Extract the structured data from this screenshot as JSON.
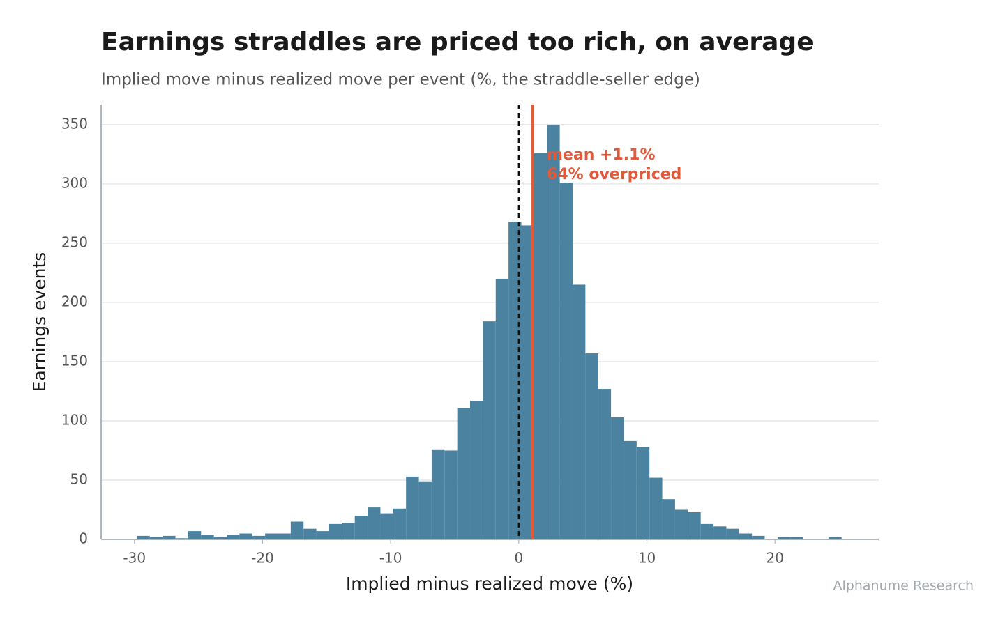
{
  "chart_data": {
    "type": "histogram",
    "title": "Earnings straddles are priced too rich, on average",
    "subtitle": "Implied move minus realized move per event (%, the straddle-seller edge)",
    "x_label": "Implied minus realized move (%)",
    "y_label": "Earnings events",
    "source": "Alphanume Research",
    "bins": [
      -29.8,
      -28.8,
      -27.8,
      -26.8,
      -25.8,
      -24.8,
      -23.8,
      -22.8,
      -21.8,
      -20.8,
      -19.8,
      -18.8,
      -17.8,
      -16.8,
      -15.8,
      -14.8,
      -13.8,
      -12.8,
      -11.8,
      -10.8,
      -9.8,
      -8.8,
      -7.8,
      -6.8,
      -5.8,
      -4.8,
      -3.8,
      -2.8,
      -1.8,
      -0.8,
      0.2,
      1.2,
      2.2,
      3.2,
      4.2,
      5.2,
      6.2,
      7.2,
      8.2,
      9.2,
      10.2,
      11.2,
      12.2,
      13.2,
      14.2,
      15.2,
      16.2,
      17.2,
      18.2,
      19.2,
      20.2,
      21.2,
      22.2,
      23.2,
      24.2,
      25.2
    ],
    "values": [
      3,
      2,
      3,
      1,
      7,
      4,
      2,
      4,
      5,
      3,
      5,
      5,
      15,
      9,
      7,
      13,
      14,
      20,
      27,
      22,
      26,
      53,
      49,
      76,
      75,
      111,
      117,
      184,
      220,
      268,
      265,
      326,
      350,
      301,
      215,
      157,
      127,
      103,
      83,
      78,
      52,
      34,
      25,
      23,
      13,
      11,
      9,
      5,
      3,
      0,
      2,
      2,
      0,
      0,
      2
    ],
    "color": "#4a82a0",
    "reference_line": {
      "value": 0,
      "color": "#111111"
    },
    "mean_line": {
      "value": 1.1,
      "label": "mean +1.1%",
      "color": "#e05a3a"
    },
    "annotation": "64% overpriced",
    "xlim": [
      -32.6,
      28.1
    ],
    "xticks": [
      -30,
      -20,
      -10,
      0,
      10,
      20
    ],
    "ylim": [
      0,
      367
    ],
    "yticks": [
      0,
      50,
      100,
      150,
      200,
      250,
      300,
      350
    ],
    "grid": true
  }
}
